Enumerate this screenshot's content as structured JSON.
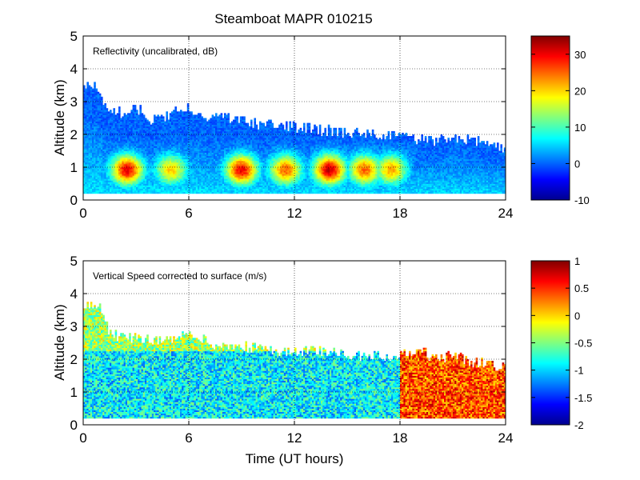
{
  "figure": {
    "title": "Steamboat MAPR 010215",
    "xlabel": "Time (UT hours)"
  },
  "chart_data": [
    {
      "type": "heatmap",
      "title": "Reflectivity (uncalibrated, dB)",
      "xlabel": "",
      "ylabel": "Altitude (km)",
      "xlim": [
        0,
        24
      ],
      "ylim": [
        0,
        5
      ],
      "xticks": [
        "0",
        "6",
        "12",
        "18",
        "24"
      ],
      "yticks": [
        "0",
        "1",
        "2",
        "3",
        "4",
        "5"
      ],
      "grid": true,
      "colorbar": {
        "range": [
          -10,
          35
        ],
        "ticks": [
          "-10",
          "0",
          "10",
          "20",
          "30"
        ],
        "tick_values": [
          -10,
          0,
          10,
          20,
          30
        ],
        "colormap": "jet"
      },
      "cloud_top_km": [
        [
          0,
          3.4
        ],
        [
          0.5,
          3.6
        ],
        [
          1,
          3.0
        ],
        [
          1.5,
          2.6
        ],
        [
          2,
          2.7
        ],
        [
          2.5,
          2.5
        ],
        [
          3,
          2.8
        ],
        [
          4,
          2.4
        ],
        [
          5,
          2.6
        ],
        [
          6,
          2.8
        ],
        [
          7,
          2.4
        ],
        [
          8,
          2.5
        ],
        [
          9,
          2.4
        ],
        [
          10,
          2.3
        ],
        [
          12,
          2.2
        ],
        [
          14,
          2.1
        ],
        [
          16,
          2.0
        ],
        [
          18,
          1.9
        ],
        [
          19,
          1.8
        ],
        [
          20,
          1.8
        ],
        [
          21,
          1.9
        ],
        [
          22,
          1.8
        ],
        [
          23,
          1.7
        ],
        [
          24,
          1.6
        ]
      ],
      "reflectivity_cores": [
        {
          "time_h": 2.5,
          "alt_km": 0.9,
          "dbz": 30
        },
        {
          "time_h": 5.0,
          "alt_km": 0.9,
          "dbz": 20
        },
        {
          "time_h": 9.0,
          "alt_km": 0.9,
          "dbz": 30
        },
        {
          "time_h": 11.5,
          "alt_km": 0.9,
          "dbz": 25
        },
        {
          "time_h": 14.0,
          "alt_km": 0.9,
          "dbz": 32
        },
        {
          "time_h": 16.0,
          "alt_km": 0.9,
          "dbz": 25
        },
        {
          "time_h": 17.5,
          "alt_km": 0.9,
          "dbz": 22
        },
        {
          "time_h": 21.0,
          "alt_km": 1.0,
          "dbz": 2
        }
      ]
    },
    {
      "type": "heatmap",
      "title": "Vertical Speed corrected to surface (m/s)",
      "xlabel": "Time (UT hours)",
      "ylabel": "Altitude (km)",
      "xlim": [
        0,
        24
      ],
      "ylim": [
        0,
        5
      ],
      "xticks": [
        "0",
        "6",
        "12",
        "18",
        "24"
      ],
      "yticks": [
        "0",
        "1",
        "2",
        "3",
        "4",
        "5"
      ],
      "grid": true,
      "colorbar": {
        "range": [
          -2,
          1
        ],
        "ticks": [
          "-2",
          "-1.5",
          "-1",
          "-0.5",
          "0",
          "0.5",
          "1"
        ],
        "tick_values": [
          -2,
          -1.5,
          -1,
          -0.5,
          0,
          0.5,
          1
        ],
        "colormap": "jet"
      },
      "cloud_top_km": [
        [
          0,
          3.4
        ],
        [
          0.5,
          3.7
        ],
        [
          1,
          3.5
        ],
        [
          1.5,
          2.8
        ],
        [
          2,
          2.7
        ],
        [
          3,
          2.6
        ],
        [
          4,
          2.5
        ],
        [
          5,
          2.6
        ],
        [
          6,
          2.8
        ],
        [
          7,
          2.5
        ],
        [
          8,
          2.4
        ],
        [
          10,
          2.3
        ],
        [
          12,
          2.2
        ],
        [
          14,
          2.2
        ],
        [
          16,
          2.1
        ],
        [
          18,
          2.1
        ],
        [
          19,
          2.3
        ],
        [
          20,
          2.0
        ],
        [
          21,
          2.1
        ],
        [
          22,
          1.9
        ],
        [
          23,
          1.8
        ],
        [
          24,
          1.7
        ]
      ],
      "mean_vertical_speed": [
        {
          "period": "0-18 h",
          "value_ms": -0.9
        },
        {
          "period": "18-24 h",
          "value_ms": 0.4
        }
      ]
    }
  ]
}
